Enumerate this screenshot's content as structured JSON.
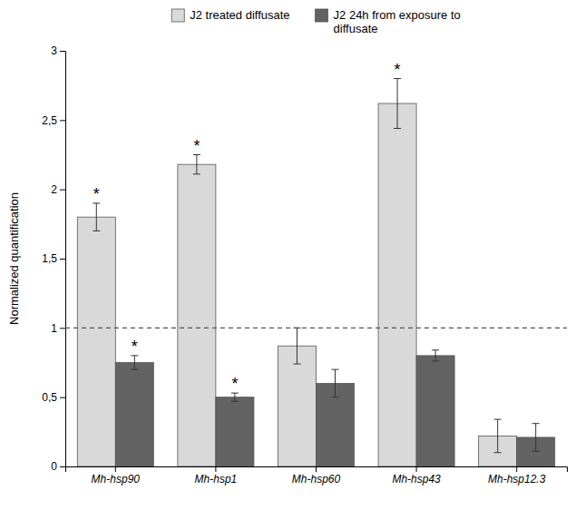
{
  "chart_data": {
    "type": "bar",
    "categories": [
      "Mh-hsp90",
      "Mh-hsp1",
      "Mh-hsp60",
      "Mh-hsp43",
      "Mh-hsp12.3"
    ],
    "series": [
      {
        "name": "J2 treated diffusate",
        "color": "#d9d9d9",
        "values": [
          1.8,
          2.18,
          0.87,
          2.62,
          0.22
        ],
        "errors": [
          0.1,
          0.07,
          0.13,
          0.18,
          0.12
        ],
        "significant": [
          true,
          true,
          false,
          true,
          false
        ]
      },
      {
        "name": "J2 24h from exposure to\ndiffusate",
        "color": "#636363",
        "values": [
          0.75,
          0.5,
          0.6,
          0.8,
          0.21
        ],
        "errors": [
          0.05,
          0.03,
          0.1,
          0.04,
          0.1
        ],
        "significant": [
          true,
          true,
          false,
          false,
          false
        ]
      }
    ],
    "significance_label": "*",
    "reference_line": 1.0,
    "ylabel": "Normalized quantification",
    "ylim": [
      0,
      3
    ],
    "yticks": [
      0,
      {
        "value": 0.5,
        "label": "0,5"
      },
      1,
      {
        "value": 1.5,
        "label": "1,5"
      },
      2,
      {
        "value": 2.5,
        "label": "2,5"
      },
      3
    ],
    "legend": "top"
  }
}
